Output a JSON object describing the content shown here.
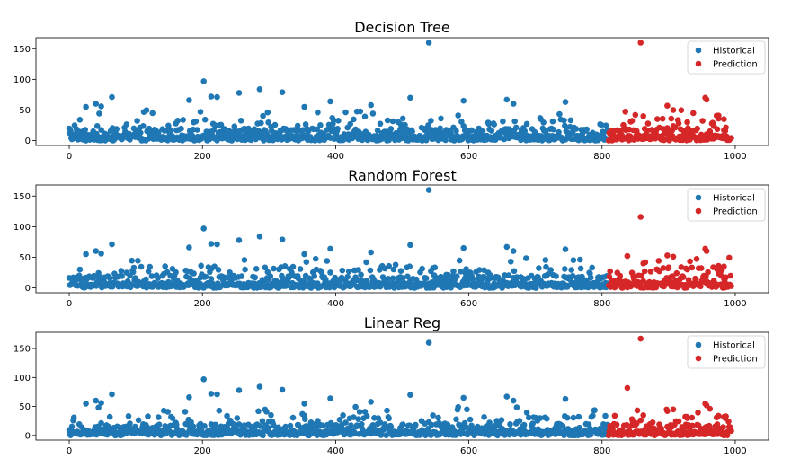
{
  "chart_data": [
    {
      "type": "scatter",
      "title": "Decision Tree",
      "xlim": [
        -50,
        1050
      ],
      "ylim": [
        -8,
        168
      ],
      "xticks": [
        0,
        200,
        400,
        600,
        800,
        1000
      ],
      "yticks": [
        0,
        50,
        100,
        150
      ],
      "legend": "top-right",
      "series": [
        {
          "name": "Historical",
          "color": "#1f77b4",
          "x_range": [
            0,
            810
          ],
          "highlights": [
            [
              540,
              160
            ],
            [
              202,
              97
            ],
            [
              286,
              84
            ],
            [
              320,
              79
            ],
            [
              255,
              78
            ],
            [
              64,
              71
            ],
            [
              213,
              72
            ],
            [
              222,
              71
            ],
            [
              512,
              70
            ],
            [
              657,
              67
            ],
            [
              745,
              63
            ],
            [
              667,
              60
            ],
            [
              592,
              65
            ],
            [
              392,
              64
            ],
            [
              453,
              58
            ],
            [
              353,
              55
            ],
            [
              25,
              55
            ],
            [
              40,
              60
            ],
            [
              48,
              56
            ],
            [
              180,
              66
            ]
          ]
        },
        {
          "name": "Prediction",
          "color": "#d62728",
          "x_range": [
            810,
            995
          ],
          "highlights": [
            [
              858,
              160
            ],
            [
              955,
              70
            ],
            [
              957,
              67
            ],
            [
              898,
              57
            ],
            [
              907,
              50
            ],
            [
              937,
              45
            ],
            [
              850,
              42
            ],
            [
              862,
              40
            ],
            [
              975,
              36
            ],
            [
              983,
              35
            ],
            [
              928,
              30
            ]
          ]
        }
      ]
    },
    {
      "type": "scatter",
      "title": "Random Forest",
      "xlim": [
        -50,
        1050
      ],
      "ylim": [
        -8,
        168
      ],
      "xticks": [
        0,
        200,
        400,
        600,
        800,
        1000
      ],
      "yticks": [
        0,
        50,
        100,
        150
      ],
      "legend": "top-right",
      "series": [
        {
          "name": "Historical",
          "color": "#1f77b4",
          "x_range": [
            0,
            810
          ],
          "highlights": [
            [
              540,
              160
            ],
            [
              202,
              97
            ],
            [
              286,
              84
            ],
            [
              320,
              79
            ],
            [
              255,
              78
            ],
            [
              64,
              71
            ],
            [
              213,
              72
            ],
            [
              222,
              71
            ],
            [
              512,
              70
            ],
            [
              657,
              67
            ],
            [
              745,
              63
            ],
            [
              667,
              60
            ],
            [
              592,
              65
            ],
            [
              392,
              64
            ],
            [
              453,
              58
            ],
            [
              353,
              55
            ],
            [
              25,
              55
            ],
            [
              40,
              60
            ],
            [
              48,
              56
            ],
            [
              180,
              66
            ]
          ]
        },
        {
          "name": "Prediction",
          "color": "#d62728",
          "x_range": [
            810,
            995
          ],
          "highlights": [
            [
              858,
              116
            ],
            [
              955,
              64
            ],
            [
              957,
              60
            ],
            [
              898,
              53
            ],
            [
              907,
              51
            ],
            [
              838,
              52
            ],
            [
              862,
              40
            ],
            [
              975,
              36
            ],
            [
              983,
              35
            ],
            [
              928,
              30
            ]
          ]
        }
      ]
    },
    {
      "type": "scatter",
      "title": "Linear Reg",
      "xlim": [
        -50,
        1050
      ],
      "ylim": [
        -8,
        178
      ],
      "xticks": [
        0,
        200,
        400,
        600,
        800,
        1000
      ],
      "yticks": [
        0,
        50,
        100,
        150
      ],
      "legend": "top-right",
      "series": [
        {
          "name": "Historical",
          "color": "#1f77b4",
          "x_range": [
            0,
            810
          ],
          "highlights": [
            [
              540,
              160
            ],
            [
              202,
              97
            ],
            [
              286,
              84
            ],
            [
              320,
              79
            ],
            [
              255,
              78
            ],
            [
              64,
              71
            ],
            [
              213,
              72
            ],
            [
              222,
              71
            ],
            [
              512,
              70
            ],
            [
              657,
              67
            ],
            [
              745,
              63
            ],
            [
              667,
              60
            ],
            [
              592,
              65
            ],
            [
              392,
              64
            ],
            [
              453,
              58
            ],
            [
              353,
              55
            ],
            [
              25,
              55
            ],
            [
              40,
              60
            ],
            [
              48,
              56
            ],
            [
              180,
              66
            ]
          ]
        },
        {
          "name": "Prediction",
          "color": "#d62728",
          "x_range": [
            810,
            995
          ],
          "highlights": [
            [
              858,
              167
            ],
            [
              838,
              82
            ],
            [
              955,
              55
            ],
            [
              957,
              52
            ],
            [
              907,
              45
            ],
            [
              898,
              42
            ],
            [
              862,
              35
            ],
            [
              975,
              34
            ],
            [
              983,
              32
            ],
            [
              928,
              30
            ]
          ]
        }
      ]
    }
  ]
}
